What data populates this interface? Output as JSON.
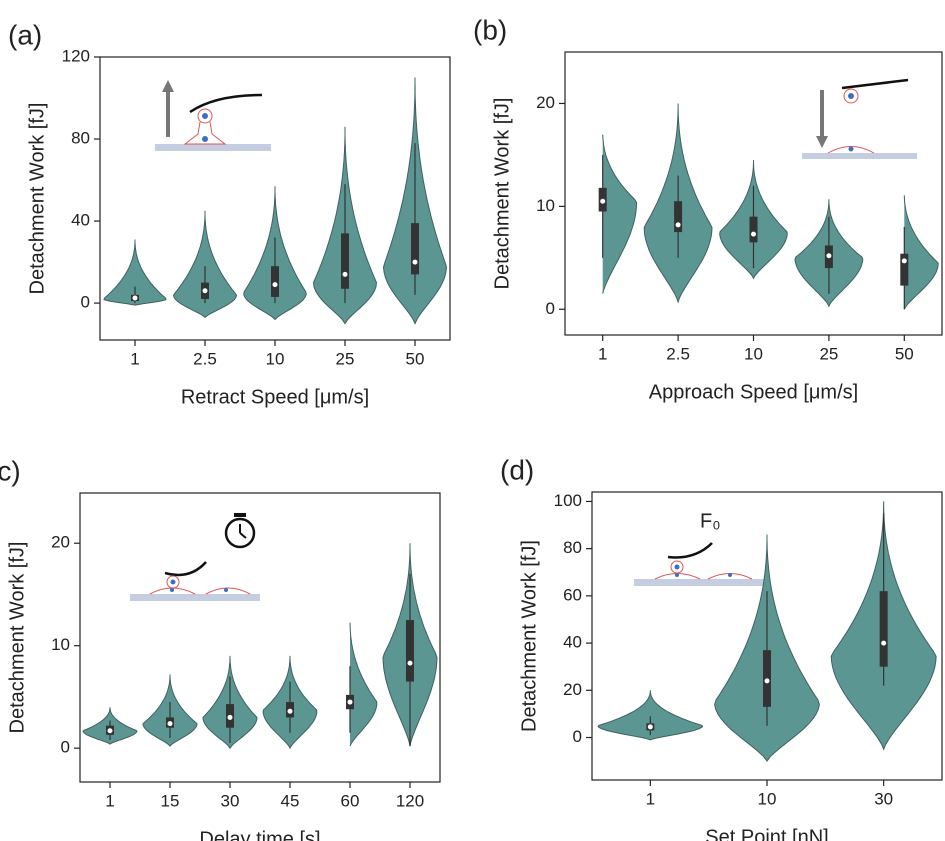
{
  "chart_data": [
    {
      "type": "violin",
      "label": "(a)",
      "x_label": "Retract Speed [μm/s]",
      "y_label": "Detachment Work [fJ]",
      "color": "#5b9693",
      "categories": [
        "1",
        "2.5",
        "10",
        "25",
        "50"
      ],
      "min": [
        -1,
        -7,
        -8,
        -10,
        -10
      ],
      "peak": [
        2,
        4,
        5,
        10,
        18
      ],
      "max": [
        31,
        45,
        57,
        86,
        110
      ],
      "q1": [
        1,
        2,
        3,
        7,
        14
      ],
      "median": [
        2.5,
        6,
        9,
        14,
        20
      ],
      "q3": [
        4,
        10,
        18,
        34,
        39
      ],
      "whisker_low": [
        0,
        0,
        0,
        0,
        4
      ],
      "whisker_high": [
        8,
        18,
        32,
        58,
        78
      ],
      "ylim": [
        -18,
        120
      ],
      "yticks": [
        0,
        40,
        80,
        120
      ]
    },
    {
      "type": "violin",
      "label": "(b)",
      "x_label": "Approach Speed [μm/s]",
      "y_label": "Detachment Work [fJ]",
      "color": "#5b9693",
      "categories": [
        "1",
        "2.5",
        "10",
        "25",
        "50"
      ],
      "min": [
        1.5,
        0.7,
        3,
        0.3,
        0
      ],
      "peak": [
        10.5,
        8,
        7.5,
        5,
        4.5
      ],
      "max": [
        17.3,
        20,
        14.5,
        10.7,
        11.3
      ],
      "q1": [
        9.5,
        7.5,
        6.5,
        4,
        2.3
      ],
      "median": [
        10.5,
        8.2,
        7.3,
        5.2,
        4.7
      ],
      "q3": [
        11.8,
        10.5,
        9,
        6.2,
        5.4
      ],
      "whisker_low": [
        5,
        5,
        4,
        1.5,
        0
      ],
      "whisker_high": [
        15,
        13,
        12,
        9,
        8
      ],
      "ylim": [
        -2.5,
        25
      ],
      "yticks": [
        0,
        10,
        20
      ]
    },
    {
      "type": "violin",
      "label": "(c)",
      "x_label": "Delay time [s]",
      "y_label": "Detachment Work [fJ]",
      "color": "#5b9693",
      "categories": [
        "1",
        "15",
        "30",
        "45",
        "60",
        "120"
      ],
      "min": [
        0.4,
        0.2,
        0,
        0,
        0.2,
        0.2
      ],
      "peak": [
        1.7,
        2.4,
        3,
        3.7,
        4.5,
        9
      ],
      "max": [
        4,
        7.2,
        9,
        9,
        12.5,
        20
      ],
      "q1": [
        1.3,
        2,
        2,
        3,
        3.8,
        6.5
      ],
      "median": [
        1.7,
        2.4,
        3,
        3.6,
        4.5,
        8.3
      ],
      "q3": [
        2.2,
        3,
        4.3,
        4.5,
        5.2,
        12.5
      ],
      "whisker_low": [
        0.8,
        1,
        0.5,
        1.5,
        1.5,
        0.2
      ],
      "whisker_high": [
        2.7,
        4.5,
        7,
        6.5,
        8,
        17
      ],
      "ylim": [
        -3.3,
        24.9
      ],
      "yticks": [
        0,
        10,
        20
      ]
    },
    {
      "type": "violin",
      "label": "(d)",
      "x_label": "Set Point [nN]",
      "y_label": "Detachment Work [fJ]",
      "color": "#5b9693",
      "annotation": "F₀",
      "categories": [
        "1",
        "10",
        "30"
      ],
      "min": [
        -1,
        -10,
        -5
      ],
      "peak": [
        5,
        15,
        35
      ],
      "max": [
        20,
        86,
        100
      ],
      "q1": [
        3,
        13,
        30
      ],
      "median": [
        4.5,
        24,
        40
      ],
      "q3": [
        6,
        37,
        62
      ],
      "whisker_low": [
        1,
        5,
        22
      ],
      "whisker_high": [
        9,
        62,
        95
      ],
      "ylim": [
        -18,
        104
      ],
      "yticks": [
        0,
        20,
        40,
        60,
        80,
        100
      ]
    }
  ]
}
